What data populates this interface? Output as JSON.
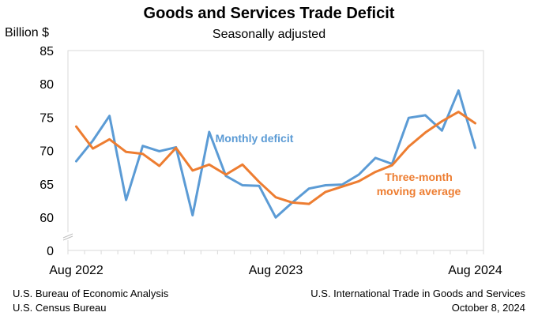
{
  "chart_data": {
    "type": "line",
    "title": "Goods and Services Trade Deficit",
    "subtitle": "Seasonally adjusted",
    "ylabel": "Billion $",
    "xlabel": "",
    "ylim": [
      0,
      85
    ],
    "yticks": [
      0,
      60,
      65,
      70,
      75,
      80,
      85
    ],
    "axis_break": true,
    "grid": false,
    "x": [
      "Aug 2022",
      "Sep 2022",
      "Oct 2022",
      "Nov 2022",
      "Dec 2022",
      "Jan 2023",
      "Feb 2023",
      "Mar 2023",
      "Apr 2023",
      "May 2023",
      "Jun 2023",
      "Jul 2023",
      "Aug 2023",
      "Sep 2023",
      "Oct 2023",
      "Nov 2023",
      "Dec 2023",
      "Jan 2024",
      "Feb 2024",
      "Mar 2024",
      "Apr 2024",
      "May 2024",
      "Jun 2024",
      "Jul 2024",
      "Aug 2024"
    ],
    "x_tick_labels": [
      {
        "index": 0,
        "label": "Aug 2022"
      },
      {
        "index": 12,
        "label": "Aug 2023"
      },
      {
        "index": 24,
        "label": "Aug 2024"
      }
    ],
    "series": [
      {
        "name": "Monthly deficit",
        "color": "#5b9bd5",
        "values": [
          68.4,
          71.5,
          75.2,
          62.6,
          70.7,
          69.9,
          70.5,
          60.3,
          72.8,
          66.2,
          64.8,
          64.7,
          59.6,
          62.2,
          64.3,
          64.8,
          64.9,
          66.4,
          68.9,
          68.0,
          74.9,
          75.3,
          73.0,
          79.0,
          70.4
        ]
      },
      {
        "name": "Three-month moving average",
        "label_lines": [
          "Three-month",
          "moving average"
        ],
        "color": "#ed7d31",
        "values": [
          73.6,
          70.3,
          71.7,
          69.8,
          69.5,
          67.7,
          70.4,
          67.0,
          67.9,
          66.4,
          67.9,
          65.3,
          63.0,
          62.2,
          62.0,
          63.8,
          64.6,
          65.4,
          66.8,
          67.8,
          70.6,
          72.7,
          74.4,
          75.8,
          74.1
        ]
      }
    ]
  },
  "footer": {
    "left_line1": "U.S. Bureau of Economic Analysis",
    "left_line2": "U.S. Census Bureau",
    "right_line1": "U.S. International Trade in Goods and Services",
    "right_line2": "October 8, 2024"
  }
}
